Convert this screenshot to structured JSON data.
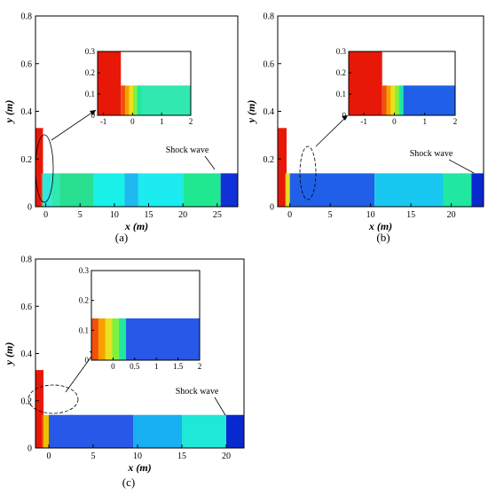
{
  "chart_data": [
    {
      "panel": "a",
      "panel_label": "(a)",
      "type": "heatmap",
      "xlabel": "x (m)",
      "ylabel": "y (m)",
      "xlim": [
        -1.5,
        28
      ],
      "ylim": [
        0,
        0.8
      ],
      "xticks": [
        0,
        5,
        10,
        15,
        20,
        25
      ],
      "yticks": [
        0,
        0.2,
        0.4,
        0.6,
        0.8
      ],
      "annotation": "Shock wave",
      "channel_height": 0.14,
      "chamber": {
        "x": [
          -1.5,
          -0.4
        ],
        "y": [
          0,
          0.33
        ]
      },
      "bands": [
        {
          "x0": -0.5,
          "x1": 0.8,
          "color": "#2fe8e0"
        },
        {
          "x0": 0.8,
          "x1": 2.0,
          "color": "#30e8b0"
        },
        {
          "x0": 2.0,
          "x1": 7.0,
          "color": "#28e090"
        },
        {
          "x0": 7.0,
          "x1": 11.5,
          "color": "#18f0e8"
        },
        {
          "x0": 11.5,
          "x1": 13.5,
          "color": "#20b8f0"
        },
        {
          "x0": 13.5,
          "x1": 20.0,
          "color": "#1cecf0"
        },
        {
          "x0": 20.0,
          "x1": 25.5,
          "color": "#20e890"
        },
        {
          "x0": 25.5,
          "x1": 28.0,
          "color": "#1030d8"
        }
      ],
      "inset": {
        "xlim": [
          -1.2,
          2
        ],
        "ylim": [
          0,
          0.3
        ],
        "xticks": [
          -1,
          0,
          1,
          2
        ],
        "yticks": [
          0,
          0.1,
          0.2,
          0.3
        ]
      }
    },
    {
      "panel": "b",
      "panel_label": "(b)",
      "type": "heatmap",
      "xlabel": "x (m)",
      "ylabel": "y (m)",
      "xlim": [
        -1.5,
        24
      ],
      "ylim": [
        0,
        0.8
      ],
      "xticks": [
        0,
        5,
        10,
        15,
        20
      ],
      "yticks": [
        0,
        0.2,
        0.4,
        0.6,
        0.8
      ],
      "annotation": "Shock wave",
      "channel_height": 0.14,
      "chamber": {
        "x": [
          -1.5,
          -0.4
        ],
        "y": [
          0,
          0.33
        ]
      },
      "bands": [
        {
          "x0": -0.5,
          "x1": 0.0,
          "color": "#e0e020"
        },
        {
          "x0": 0.0,
          "x1": 10.5,
          "color": "#2060e8"
        },
        {
          "x0": 10.5,
          "x1": 19.0,
          "color": "#18c8f0"
        },
        {
          "x0": 19.0,
          "x1": 22.5,
          "color": "#20e8a0"
        },
        {
          "x0": 22.5,
          "x1": 24.0,
          "color": "#0828d0"
        }
      ],
      "inset": {
        "xlim": [
          -1.5,
          2
        ],
        "ylim": [
          0,
          0.3
        ],
        "xticks": [
          -1,
          0,
          1,
          2
        ],
        "yticks": [
          0,
          0.1,
          0.2,
          0.3
        ]
      }
    },
    {
      "panel": "c",
      "panel_label": "(c)",
      "type": "heatmap",
      "xlabel": "x (m)",
      "ylabel": "y (m)",
      "xlim": [
        -1.5,
        22
      ],
      "ylim": [
        0,
        0.8
      ],
      "xticks": [
        0,
        5,
        10,
        15,
        20
      ],
      "yticks": [
        0,
        0.2,
        0.4,
        0.6,
        0.8
      ],
      "annotation": "Shock wave",
      "channel_height": 0.14,
      "chamber": {
        "x": [
          -1.5,
          -0.6
        ],
        "y": [
          0,
          0.33
        ]
      },
      "bands": [
        {
          "x0": -0.6,
          "x1": 0.0,
          "color": "#f0c000"
        },
        {
          "x0": 0.0,
          "x1": 9.5,
          "color": "#2858e8"
        },
        {
          "x0": 9.5,
          "x1": 15.0,
          "color": "#18b0f0"
        },
        {
          "x0": 15.0,
          "x1": 20.0,
          "color": "#20e8d8"
        },
        {
          "x0": 20.0,
          "x1": 22.0,
          "color": "#0828d0"
        }
      ],
      "inset": {
        "xlim": [
          -0.5,
          2
        ],
        "ylim": [
          0,
          0.3
        ],
        "xticks": [
          0,
          0.5,
          1,
          1.5,
          2
        ],
        "yticks": [
          0,
          0.1,
          0.2,
          0.3
        ]
      }
    }
  ]
}
